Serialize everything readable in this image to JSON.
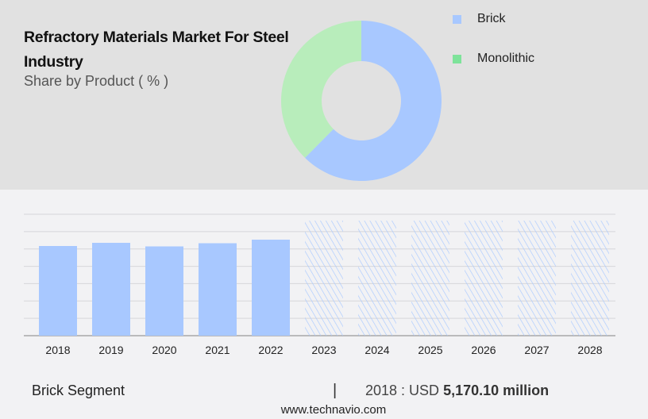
{
  "header": {
    "title": "Refractory Materials Market For Steel Industry",
    "subtitle": "Share by Product ( % )"
  },
  "colors": {
    "brick": "#a8c8ff",
    "monolithic_legend": "#7ee39a",
    "monolithic_slice": "#b8edbb",
    "top_bg": "#e1e1e1",
    "bottom_bg": "#f2f2f4"
  },
  "chart_data": [
    {
      "type": "pie",
      "variant": "donut",
      "legend_position": "right",
      "series": [
        {
          "name": "Brick",
          "value": 62.4
        },
        {
          "name": "Monolithic",
          "value": 37.6
        }
      ]
    },
    {
      "type": "bar",
      "categories": [
        "2018",
        "2019",
        "2020",
        "2021",
        "2022",
        "2023",
        "2024",
        "2025",
        "2026",
        "2027",
        "2028"
      ],
      "values": [
        5170.1,
        5353,
        5147,
        5330,
        5536,
        null,
        null,
        null,
        null,
        null,
        null
      ],
      "forecast_categories": [
        "2023",
        "2024",
        "2025",
        "2026",
        "2027",
        "2028"
      ],
      "ylim": [
        0,
        7000
      ],
      "grid": true,
      "xlabel": "",
      "ylabel": ""
    }
  ],
  "footer": {
    "segment": "Brick Segment",
    "separator": "|",
    "year_label": "2018 : USD ",
    "value": "5,170.10 million",
    "site": "www.technavio.com"
  }
}
